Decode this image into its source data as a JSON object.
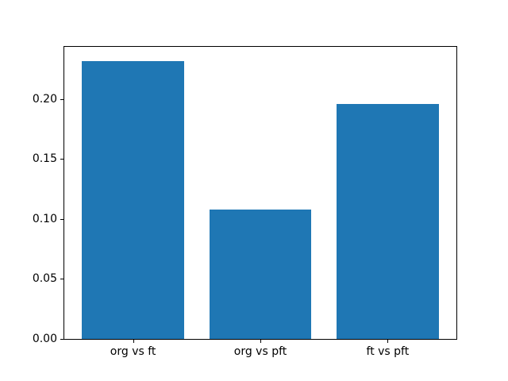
{
  "chart_data": {
    "type": "bar",
    "categories": [
      "org vs ft",
      "org vs pft",
      "ft vs pft"
    ],
    "values": [
      0.232,
      0.108,
      0.196
    ],
    "xlabel": "",
    "ylabel": "",
    "ylim": [
      0,
      0.2436
    ],
    "xlim": [
      -0.54,
      2.54
    ],
    "bar_width": 0.8,
    "yticks": [
      0.0,
      0.05,
      0.1,
      0.15,
      0.2
    ],
    "ytick_labels": [
      "0.00",
      "0.05",
      "0.10",
      "0.15",
      "0.20"
    ],
    "bar_color": "#1f77b4",
    "axis_color": "#000000",
    "background_color": "#ffffff",
    "grid": false,
    "legend": "none"
  }
}
